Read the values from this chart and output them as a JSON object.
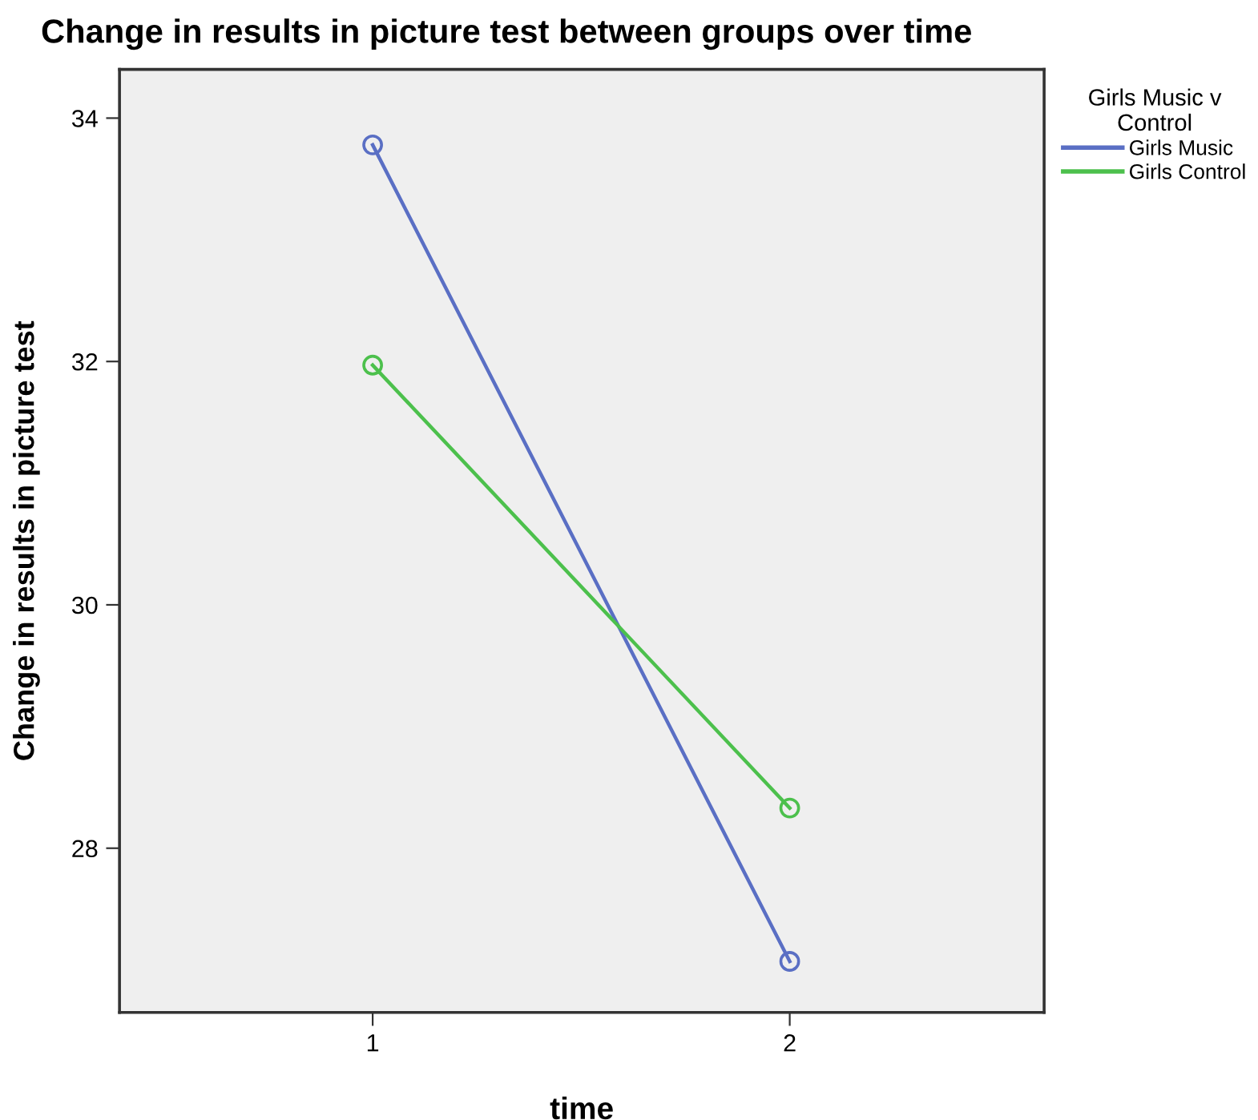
{
  "chart_data": {
    "type": "line",
    "title": "Change in results in picture test between groups over time",
    "xlabel": "time",
    "ylabel": "Change in results in picture test",
    "legend_title": "Girls Music v\nControl",
    "categories": [
      "1",
      "2"
    ],
    "series": [
      {
        "name": "Girls Music",
        "color": "#5a6fc4",
        "values": [
          33.78,
          27.07
        ]
      },
      {
        "name": "Girls Control",
        "color": "#4cc04c",
        "values": [
          31.97,
          28.33
        ]
      }
    ],
    "ylim": [
      26.65,
      34.4
    ],
    "yticks": [
      28,
      30,
      32,
      34
    ],
    "grid": false,
    "legend": "top right",
    "marker": "circle",
    "line_style": "solid"
  }
}
